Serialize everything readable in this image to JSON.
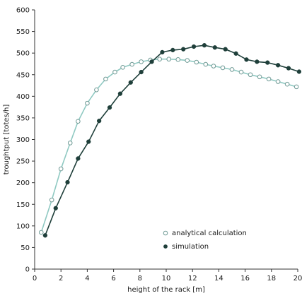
{
  "chart_data": {
    "type": "line",
    "title": "",
    "xlabel": "height of the rack [m]",
    "ylabel": "troughtput [totes/h]",
    "xlim": [
      0,
      20
    ],
    "ylim": [
      0,
      600
    ],
    "xticks": [
      0,
      2,
      4,
      6,
      8,
      10,
      12,
      14,
      16,
      18,
      20
    ],
    "yticks": [
      0,
      50,
      100,
      150,
      200,
      250,
      300,
      350,
      400,
      450,
      500,
      550,
      600
    ],
    "grid": false,
    "legend_position": "bottom-right",
    "series": [
      {
        "name": "analytical calculation",
        "marker": "open-diamond",
        "color": "#8fc9c2",
        "x": [
          0.5,
          1.3,
          2.0,
          2.7,
          3.3,
          4.0,
          4.7,
          5.4,
          6.1,
          6.7,
          7.4,
          8.1,
          8.8,
          9.5,
          10.2,
          10.9,
          11.6,
          12.3,
          13.0,
          13.6,
          14.3,
          15.0,
          15.7,
          16.4,
          17.1,
          17.8,
          18.5,
          19.2,
          19.9
        ],
        "y": [
          85,
          160,
          232,
          292,
          342,
          384,
          415,
          440,
          456,
          467,
          474,
          480,
          484,
          486,
          486,
          485,
          483,
          479,
          474,
          470,
          466,
          462,
          456,
          450,
          445,
          440,
          434,
          428,
          422
        ]
      },
      {
        "name": "simulation",
        "marker": "filled-dot",
        "color": "#1f3f3a",
        "x": [
          0.8,
          1.6,
          2.5,
          3.3,
          4.1,
          4.9,
          5.7,
          6.5,
          7.3,
          8.1,
          8.9,
          9.7,
          10.5,
          11.3,
          12.1,
          12.9,
          13.7,
          14.5,
          15.3,
          16.1,
          16.9,
          17.7,
          18.5,
          19.3,
          20.1
        ],
        "y": [
          78,
          141,
          201,
          256,
          295,
          343,
          374,
          406,
          432,
          456,
          480,
          502,
          507,
          509,
          515,
          518,
          513,
          509,
          499,
          485,
          480,
          478,
          472,
          465,
          457
        ]
      }
    ]
  }
}
